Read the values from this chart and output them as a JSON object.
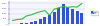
{
  "years": [
    2001,
    2002,
    2003,
    2004,
    2005,
    2006,
    2007,
    2008,
    2009,
    2010,
    2011,
    2012,
    2013,
    2014,
    2015,
    2016
  ],
  "bar_values": [
    30,
    50,
    80,
    120,
    180,
    280,
    450,
    650,
    900,
    1200,
    1550,
    1900,
    1700,
    1500,
    1300,
    1100
  ],
  "line_values": [
    150,
    165,
    170,
    215,
    230,
    255,
    275,
    290,
    225,
    310,
    330,
    350,
    335,
    345,
    340,
    390
  ],
  "bar_color": "#3355cc",
  "line_color": "#33bb44",
  "background_color": "#ffffff",
  "plot_bg_color": "#f5f5ff",
  "grid_color": "#ccccdd",
  "bar_ylim": [
    0,
    2200
  ],
  "line_ylim": [
    100,
    420
  ],
  "yticks_bar": [
    0,
    500,
    1000,
    1500,
    2000
  ],
  "ytick_labels": [
    "0",
    "500",
    "1000",
    "1500",
    "2000"
  ],
  "left_label_color": "#555599",
  "tick_fontsize": 1.5,
  "bar_alpha": 1.0
}
